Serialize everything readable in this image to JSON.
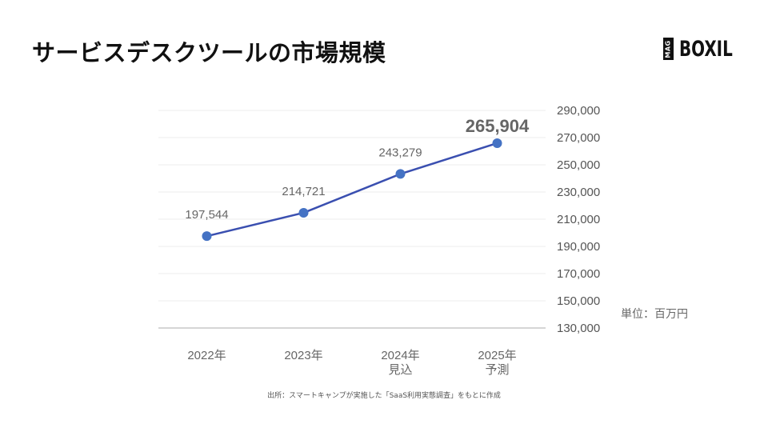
{
  "header": {
    "title": "サービスデスクツールの市場規模",
    "logo": {
      "badge": "MAG",
      "brand": "BOXIL"
    }
  },
  "chart_data": {
    "type": "line",
    "title": "サービスデスクツールの市場規模",
    "categories": [
      "2022年",
      "2023年",
      "2024年\n見込",
      "2025年\n予測"
    ],
    "category_lines": [
      [
        "2022年"
      ],
      [
        "2023年"
      ],
      [
        "2024年",
        "見込"
      ],
      [
        "2025年",
        "予測"
      ]
    ],
    "series": [
      {
        "name": "市場規模",
        "values": [
          197544,
          214721,
          243279,
          265904
        ],
        "color": "#3a4fb0",
        "marker_color": "#4472c4"
      }
    ],
    "data_labels": [
      "197,544",
      "214,721",
      "243,279",
      "265,904"
    ],
    "highlighted_label_index": 3,
    "xlabel": "",
    "ylabel": "",
    "ylim": [
      130000,
      290000
    ],
    "yticks": [
      290000,
      270000,
      250000,
      230000,
      210000,
      190000,
      170000,
      150000,
      130000
    ],
    "ytick_labels": [
      "290,000",
      "270,000",
      "250,000",
      "230,000",
      "210,000",
      "190,000",
      "170,000",
      "150,000",
      "130,000"
    ],
    "y_axis_position": "right",
    "grid": true,
    "legend": "none",
    "unit": "単位：百万円"
  },
  "footer": {
    "source": "出所：スマートキャンプが実施した「SaaS利用実態調査」をもとに作成"
  }
}
